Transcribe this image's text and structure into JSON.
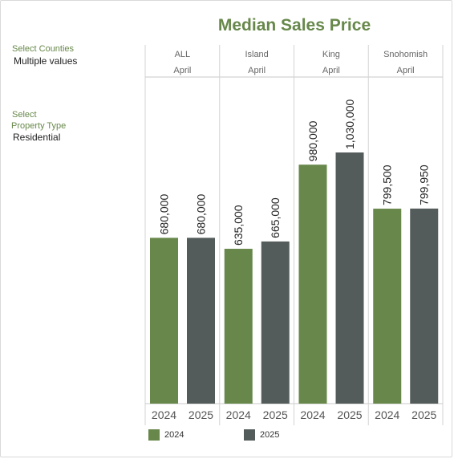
{
  "title": "Median Sales Price",
  "filters": {
    "counties_label": "Select Counties",
    "counties_value": "Multiple values",
    "property_label_line1": "Select",
    "property_label_line2": "Property Type",
    "property_value": "Residential"
  },
  "colors": {
    "y2024": "#67884a",
    "y2025": "#535c5a",
    "accent": "#67884a"
  },
  "legend": [
    {
      "label": "2024",
      "color": "#67884a"
    },
    {
      "label": "2025",
      "color": "#535c5a"
    }
  ],
  "chart_data": {
    "type": "bar",
    "title": "Median Sales Price",
    "groups": [
      {
        "name": "ALL",
        "period": "April",
        "years": [
          "2024",
          "2025"
        ],
        "values": [
          680000,
          680000
        ],
        "labels": [
          "680,000",
          "680,000"
        ]
      },
      {
        "name": "Island",
        "period": "April",
        "years": [
          "2024",
          "2025"
        ],
        "values": [
          635000,
          665000
        ],
        "labels": [
          "635,000",
          "665,000"
        ]
      },
      {
        "name": "King",
        "period": "April",
        "years": [
          "2024",
          "2025"
        ],
        "values": [
          980000,
          1030000
        ],
        "labels": [
          "980,000",
          "1,030,000"
        ]
      },
      {
        "name": "Snohomish",
        "period": "April",
        "years": [
          "2024",
          "2025"
        ],
        "values": [
          799500,
          799950
        ],
        "labels": [
          "799,500",
          "799,950"
        ]
      }
    ],
    "series": [
      {
        "name": "2024",
        "color": "#67884a"
      },
      {
        "name": "2025",
        "color": "#535c5a"
      }
    ],
    "ylim": [
      0,
      1250000
    ],
    "grid": false,
    "legend_position": "bottom"
  }
}
